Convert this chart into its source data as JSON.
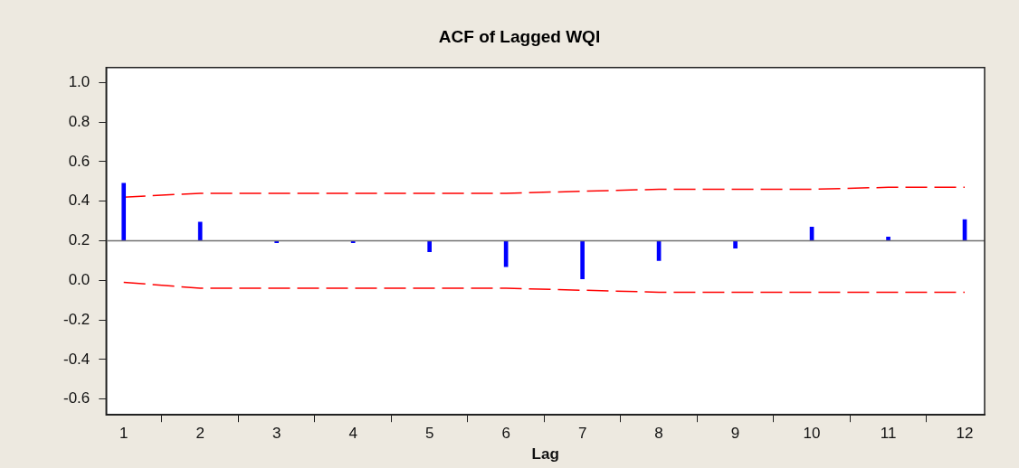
{
  "chart_data": {
    "type": "bar",
    "title": "ACF of Lagged WQI",
    "xlabel": "Lag",
    "x": [
      1,
      2,
      3,
      4,
      5,
      6,
      7,
      8,
      9,
      10,
      11,
      12
    ],
    "series": [
      {
        "base": [
          0.2,
          0.2,
          0.2,
          0.2,
          0.2,
          0.2,
          0.2,
          0.2,
          0.2,
          0.2,
          0.2,
          0.2
        ],
        "color": "#0000ff",
        "values": [
          0.29,
          0.094,
          -0.01,
          -0.01,
          -0.056,
          -0.131,
          -0.193,
          -0.1,
          -0.038,
          0.069,
          0.019,
          0.107
        ]
      },
      {
        "type": "line",
        "color": "#ff0000",
        "line_style": "dashed",
        "values": [
          0.42,
          0.44,
          0.44,
          0.44,
          0.44,
          0.44,
          0.45,
          0.46,
          0.46,
          0.46,
          0.47,
          0.47
        ]
      },
      {
        "type": "line",
        "color": "#ff0000",
        "line_style": "dashed",
        "values": [
          -0.01,
          -0.04,
          -0.04,
          -0.04,
          -0.04,
          -0.04,
          -0.05,
          -0.06,
          -0.06,
          -0.06,
          -0.06,
          -0.06
        ]
      }
    ],
    "ref_lines": [
      {
        "axis": "y",
        "value": 0.2,
        "color": "#707070"
      }
    ],
    "xlim": [
      0.77,
      12.26
    ],
    "xticks": [
      1,
      2,
      3,
      4,
      5,
      6,
      7,
      8,
      9,
      10,
      11,
      12
    ],
    "ylim": [
      -0.68,
      1.075
    ],
    "yticks": [
      -0.6,
      -0.4,
      -0.2,
      {
        "value": 0,
        "label": "0.0"
      },
      0.2,
      0.4,
      0.6,
      0.8,
      {
        "value": 1,
        "label": "1.0"
      }
    ],
    "grid": false,
    "legend": false,
    "marker": "none"
  }
}
